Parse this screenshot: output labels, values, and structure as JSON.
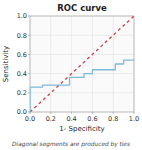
{
  "chart_data": {
    "type": "line",
    "title": "ROC curve",
    "x_label": "1- Specificity",
    "y_label": "Sensitivity",
    "annotations": [
      "Diagonal segments are produced by ties"
    ],
    "series": [
      {
        "x": [
          0.0,
          1.0
        ],
        "values": [
          0.0,
          1.0
        ],
        "color": "#c94040",
        "line_style": "dashed"
      },
      {
        "x": [
          0.0,
          0.0,
          0.12,
          0.12,
          0.38,
          0.38,
          0.52,
          0.52,
          0.6,
          0.6,
          0.82,
          0.82,
          0.9,
          0.9,
          1.0
        ],
        "values": [
          0.0,
          0.26,
          0.26,
          0.28,
          0.28,
          0.36,
          0.36,
          0.4,
          0.4,
          0.44,
          0.44,
          0.5,
          0.5,
          0.54,
          0.54
        ],
        "color": "#7fb8d8",
        "line_style": "solid"
      }
    ],
    "xlim": [
      0.0,
      1.0
    ],
    "ylim": [
      0.0,
      1.0
    ],
    "xticks": [
      {
        "value": 0.0,
        "label": "0.0"
      },
      0.2,
      0.4,
      0.6,
      0.8,
      {
        "value": 1.0,
        "label": "1.0"
      }
    ],
    "yticks": [
      {
        "value": 0.0,
        "label": "0.0"
      },
      0.2,
      0.4,
      0.6,
      0.8,
      {
        "value": 1.0,
        "label": "1.0"
      }
    ],
    "grid": true
  }
}
